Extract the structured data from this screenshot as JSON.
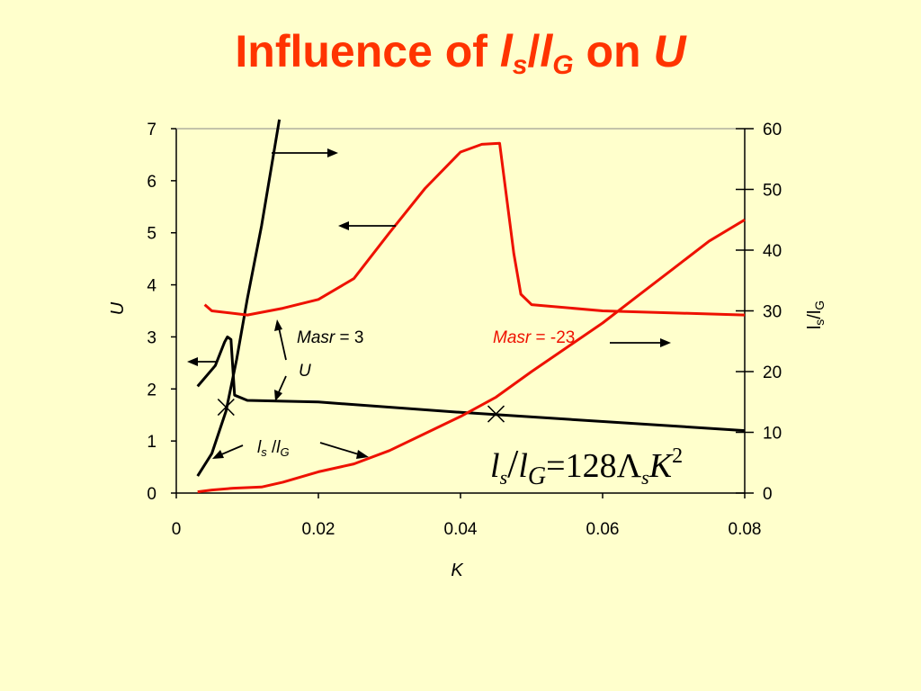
{
  "title": {
    "prefix": "Influence of ",
    "l1": "l",
    "s1": "s",
    "slash": "/",
    "l2": "l",
    "s2": "G",
    "mid": " on ",
    "u": "U"
  },
  "chart_data": {
    "type": "line",
    "xlabel": "K",
    "ylabel_left": "U",
    "ylabel_right": {
      "base1": "l",
      "sub1": "s",
      "sep": "/",
      "base2": "l",
      "sub2": "G"
    },
    "xlim": [
      0,
      0.08
    ],
    "ylim_left": [
      0,
      7
    ],
    "ylim_right": [
      0,
      60
    ],
    "xticks": [
      "0",
      "0.02",
      "0.04",
      "0.06",
      "0.08"
    ],
    "yticks_left": [
      "0",
      "1",
      "2",
      "3",
      "4",
      "5",
      "6",
      "7"
    ],
    "yticks_right": [
      "0",
      "10",
      "20",
      "30",
      "40",
      "50",
      "60"
    ],
    "series": [
      {
        "axis": "left",
        "color": "#000000",
        "values_xy": [
          [
            0.003,
            2.05
          ],
          [
            0.0055,
            2.45
          ],
          [
            0.0068,
            2.9
          ],
          [
            0.0072,
            3.0
          ],
          [
            0.0077,
            2.95
          ],
          [
            0.0082,
            1.88
          ],
          [
            0.01,
            1.78
          ],
          [
            0.02,
            1.75
          ],
          [
            0.04,
            1.55
          ],
          [
            0.08,
            1.2
          ]
        ]
      },
      {
        "axis": "right",
        "color": "#000000",
        "values_xy": [
          [
            0.003,
            2.8
          ],
          [
            0.005,
            6.5
          ],
          [
            0.007,
            13.5
          ],
          [
            0.0085,
            22
          ],
          [
            0.01,
            32
          ],
          [
            0.012,
            44
          ],
          [
            0.0145,
            61.5
          ]
        ]
      },
      {
        "axis": "left",
        "color": "#ee1100",
        "values_xy": [
          [
            0.004,
            3.62
          ],
          [
            0.005,
            3.5
          ],
          [
            0.01,
            3.42
          ],
          [
            0.015,
            3.55
          ],
          [
            0.02,
            3.72
          ],
          [
            0.025,
            4.12
          ],
          [
            0.03,
            5.0
          ],
          [
            0.035,
            5.85
          ],
          [
            0.04,
            6.55
          ],
          [
            0.043,
            6.7
          ],
          [
            0.0455,
            6.72
          ],
          [
            0.0475,
            4.6
          ],
          [
            0.0485,
            3.82
          ],
          [
            0.05,
            3.62
          ],
          [
            0.06,
            3.5
          ],
          [
            0.08,
            3.42
          ]
        ]
      },
      {
        "axis": "right",
        "color": "#ee1100",
        "values_xy": [
          [
            0.003,
            0.2
          ],
          [
            0.005,
            0.5
          ],
          [
            0.008,
            0.8
          ],
          [
            0.012,
            1.0
          ],
          [
            0.015,
            1.8
          ],
          [
            0.02,
            3.5
          ],
          [
            0.025,
            4.8
          ],
          [
            0.03,
            7.0
          ],
          [
            0.035,
            9.8
          ],
          [
            0.04,
            12.6
          ],
          [
            0.045,
            15.8
          ],
          [
            0.05,
            20.0
          ],
          [
            0.055,
            24.0
          ],
          [
            0.06,
            28.0
          ],
          [
            0.065,
            32.5
          ],
          [
            0.07,
            37.0
          ],
          [
            0.075,
            41.5
          ],
          [
            0.08,
            45.0
          ]
        ]
      }
    ],
    "markers": [
      {
        "x": 0.007,
        "y_left": 1.65,
        "symbol": "×"
      },
      {
        "x": 0.045,
        "y_left": 1.52,
        "symbol": "×"
      }
    ],
    "annotations": {
      "masr_pos": {
        "label": "Masr",
        "value": " = 3"
      },
      "masr_neg": {
        "label": "Masr",
        "value": " = -23"
      },
      "u_label": "U",
      "ls_lg": {
        "base1": "l",
        "sub1": "s",
        "sep": " /",
        "base2": "l",
        "sub2": "G"
      }
    },
    "formula": {
      "l1": "l",
      "s1": "s",
      "slash": "/",
      "l2": "l",
      "s2": "G",
      "eq": "=128",
      "lambda": "Λ",
      "s3": "s",
      "k": "K",
      "exp": "2"
    },
    "grid": false,
    "legend": "none"
  }
}
